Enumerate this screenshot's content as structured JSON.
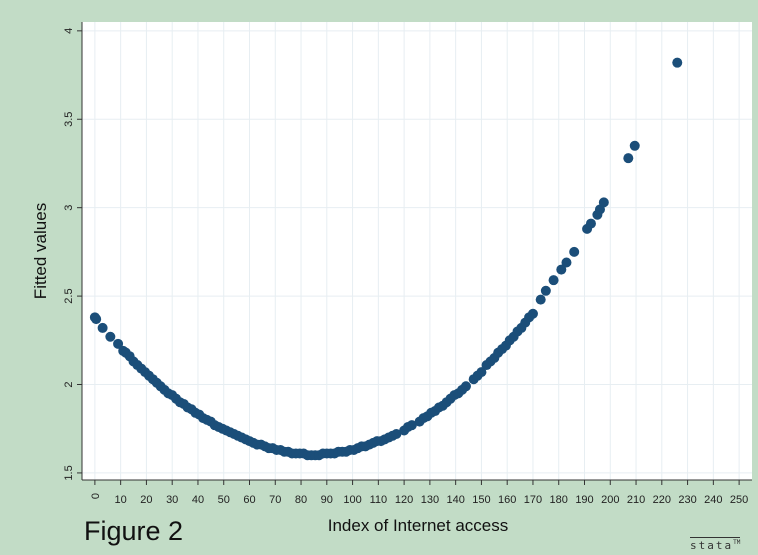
{
  "figure_caption": "Figure 2",
  "watermark": "stata",
  "watermark_tm": "TM",
  "colors": {
    "outer_bg": "#c2dcc6",
    "plot_bg": "#ffffff",
    "grid": "#e7eef2",
    "marker": "#1b4e79"
  },
  "chart_data": {
    "type": "scatter",
    "title": "",
    "xlabel": "Index of Internet access",
    "ylabel": "Fitted values",
    "xlim": [
      -5,
      255
    ],
    "ylim": [
      1.46,
      4.05
    ],
    "xticks": [
      0,
      10,
      20,
      30,
      40,
      50,
      60,
      70,
      80,
      90,
      100,
      110,
      120,
      130,
      140,
      150,
      160,
      170,
      180,
      190,
      200,
      210,
      220,
      230,
      240,
      250
    ],
    "yticks": [
      1.5,
      2,
      2.5,
      3,
      3.5,
      4
    ],
    "grid": true,
    "legend": "none",
    "series": [
      {
        "points": [
          [
            0,
            2.38
          ],
          [
            0.5,
            2.37
          ],
          [
            3,
            2.32
          ],
          [
            6,
            2.27
          ],
          [
            9,
            2.23
          ],
          [
            11,
            2.19
          ],
          [
            12,
            2.18
          ],
          [
            13.5,
            2.16
          ],
          [
            15,
            2.13
          ],
          [
            16.5,
            2.11
          ],
          [
            18,
            2.09
          ],
          [
            19.5,
            2.07
          ],
          [
            21,
            2.05
          ],
          [
            22.5,
            2.03
          ],
          [
            24,
            2.01
          ],
          [
            25.5,
            1.99
          ],
          [
            27,
            1.97
          ],
          [
            28.5,
            1.95
          ],
          [
            30,
            1.94
          ],
          [
            31.5,
            1.92
          ],
          [
            33,
            1.9
          ],
          [
            34.5,
            1.89
          ],
          [
            36,
            1.87
          ],
          [
            37.5,
            1.86
          ],
          [
            39,
            1.84
          ],
          [
            40.5,
            1.83
          ],
          [
            42,
            1.81
          ],
          [
            43.5,
            1.8
          ],
          [
            45,
            1.79
          ],
          [
            46.5,
            1.77
          ],
          [
            48,
            1.76
          ],
          [
            49.5,
            1.75
          ],
          [
            51,
            1.74
          ],
          [
            52.5,
            1.73
          ],
          [
            54,
            1.72
          ],
          [
            55.5,
            1.71
          ],
          [
            57,
            1.7
          ],
          [
            58.5,
            1.69
          ],
          [
            60,
            1.68
          ],
          [
            61.5,
            1.67
          ],
          [
            63,
            1.66
          ],
          [
            64.5,
            1.66
          ],
          [
            66,
            1.65
          ],
          [
            67.5,
            1.64
          ],
          [
            69,
            1.64
          ],
          [
            70.5,
            1.63
          ],
          [
            72,
            1.63
          ],
          [
            73.5,
            1.62
          ],
          [
            75,
            1.62
          ],
          [
            76.5,
            1.61
          ],
          [
            78,
            1.61
          ],
          [
            79.5,
            1.61
          ],
          [
            81,
            1.61
          ],
          [
            82.5,
            1.6
          ],
          [
            84,
            1.6
          ],
          [
            85.5,
            1.6
          ],
          [
            87,
            1.6
          ],
          [
            88.5,
            1.61
          ],
          [
            90,
            1.61
          ],
          [
            91.5,
            1.61
          ],
          [
            93,
            1.61
          ],
          [
            94.5,
            1.62
          ],
          [
            96,
            1.62
          ],
          [
            97.5,
            1.62
          ],
          [
            99,
            1.63
          ],
          [
            100.5,
            1.63
          ],
          [
            102,
            1.64
          ],
          [
            103.5,
            1.65
          ],
          [
            105,
            1.65
          ],
          [
            106.5,
            1.66
          ],
          [
            108,
            1.67
          ],
          [
            109.5,
            1.68
          ],
          [
            111,
            1.68
          ],
          [
            112.5,
            1.69
          ],
          [
            114,
            1.7
          ],
          [
            115.5,
            1.71
          ],
          [
            117,
            1.72
          ],
          [
            120,
            1.74
          ],
          [
            121.5,
            1.76
          ],
          [
            123,
            1.77
          ],
          [
            126,
            1.79
          ],
          [
            127.5,
            1.81
          ],
          [
            129,
            1.82
          ],
          [
            130.5,
            1.84
          ],
          [
            132,
            1.85
          ],
          [
            133.5,
            1.87
          ],
          [
            135,
            1.88
          ],
          [
            136.5,
            1.9
          ],
          [
            138,
            1.92
          ],
          [
            139.5,
            1.94
          ],
          [
            141,
            1.95
          ],
          [
            142.5,
            1.97
          ],
          [
            144,
            1.99
          ],
          [
            147,
            2.03
          ],
          [
            148.5,
            2.05
          ],
          [
            150,
            2.07
          ],
          [
            152,
            2.11
          ],
          [
            153.5,
            2.13
          ],
          [
            155,
            2.15
          ],
          [
            156.5,
            2.18
          ],
          [
            158,
            2.2
          ],
          [
            159.5,
            2.22
          ],
          [
            161,
            2.25
          ],
          [
            162.5,
            2.27
          ],
          [
            164,
            2.3
          ],
          [
            165.5,
            2.32
          ],
          [
            167,
            2.35
          ],
          [
            168.5,
            2.38
          ],
          [
            170,
            2.4
          ],
          [
            173,
            2.48
          ],
          [
            175,
            2.53
          ],
          [
            178,
            2.59
          ],
          [
            181,
            2.65
          ],
          [
            183,
            2.69
          ],
          [
            186,
            2.75
          ],
          [
            191,
            2.88
          ],
          [
            192.5,
            2.91
          ],
          [
            195,
            2.96
          ],
          [
            196,
            2.99
          ],
          [
            197.5,
            3.03
          ],
          [
            207,
            3.28
          ],
          [
            209.5,
            3.35
          ],
          [
            226,
            3.82
          ]
        ]
      }
    ]
  }
}
